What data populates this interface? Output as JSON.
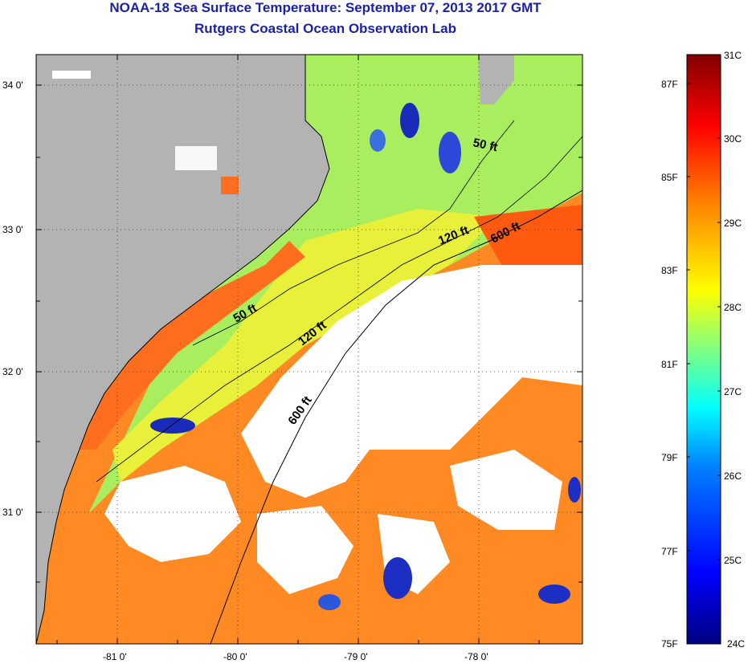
{
  "title": "NOAA-18 Sea Surface Temperature:  September 07, 2013 2017 GMT",
  "subtitle": "Rutgers Coastal Ocean Observation Lab",
  "map": {
    "lat_ticks": [
      "34 0'",
      "33 0'",
      "32 0'",
      "31 0'"
    ],
    "lon_ticks": [
      "-81 0'",
      "-80 0'",
      "-79 0'",
      "-78 0'"
    ],
    "contour_labels": [
      {
        "text": "50 ft",
        "id": "contour-label-50ft-north"
      },
      {
        "text": "120 ft",
        "id": "contour-label-120ft-north"
      },
      {
        "text": "600 ft",
        "id": "contour-label-600ft-north"
      },
      {
        "text": "50 ft",
        "id": "contour-label-50ft-south"
      },
      {
        "text": "120 ft",
        "id": "contour-label-120ft-south"
      },
      {
        "text": "600 ft",
        "id": "contour-label-600ft-south"
      }
    ],
    "colors": {
      "land": "#b3b3b3",
      "cloud": "#ffffff",
      "grid": "#000000"
    }
  },
  "colorbar": {
    "celsius": [
      "31C",
      "30C",
      "29C",
      "28C",
      "27C",
      "26C",
      "25C",
      "24C"
    ],
    "fahrenheit": [
      "87F",
      "85F",
      "83F",
      "81F",
      "79F",
      "77F",
      "75F"
    ],
    "scale_min_c": 24,
    "scale_max_c": 31,
    "stops": [
      "#00007f",
      "#0000ff",
      "#0080ff",
      "#00ffff",
      "#80ff80",
      "#ffff00",
      "#ff8000",
      "#ff0000",
      "#800000"
    ]
  }
}
